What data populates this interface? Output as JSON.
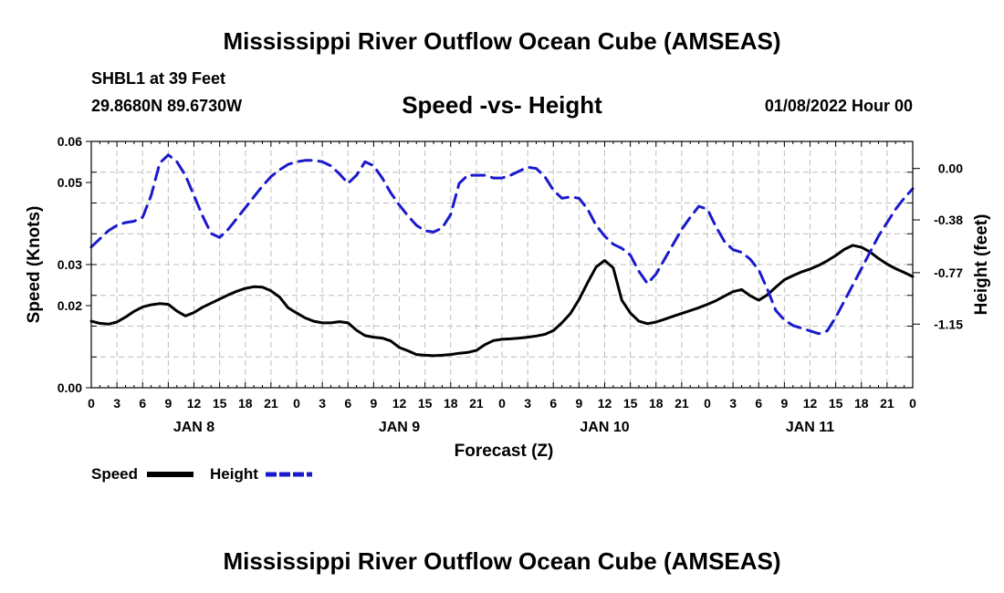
{
  "header": {
    "title": "Mississippi River Outflow Ocean Cube (AMSEAS)",
    "station": "SHBL1 at 39 Feet",
    "coords": "29.8680N  89.6730W",
    "subtitle": "Speed -vs- Height",
    "datetime": "01/08/2022 Hour 00"
  },
  "footer": {
    "title": "Mississippi River Outflow Ocean Cube (AMSEAS)"
  },
  "chart_data": {
    "type": "line",
    "title": "Speed -vs- Height",
    "xlabel": "Forecast (Z)",
    "ylabel": "Speed (Knots)",
    "y2label": "Height (feet)",
    "xlim": [
      0,
      96
    ],
    "ylim": [
      0,
      0.06
    ],
    "y2lim": [
      -1.62,
      0.2
    ],
    "x_ticks": [
      0,
      3,
      6,
      9,
      12,
      15,
      18,
      21,
      24,
      27,
      30,
      33,
      36,
      39,
      42,
      45,
      48,
      51,
      54,
      57,
      60,
      63,
      66,
      69,
      72,
      75,
      78,
      81,
      84,
      87,
      90,
      93,
      96
    ],
    "x_tick_labels": [
      "0",
      "3",
      "6",
      "9",
      "12",
      "15",
      "18",
      "21",
      "0",
      "3",
      "6",
      "9",
      "12",
      "15",
      "18",
      "21",
      "0",
      "3",
      "6",
      "9",
      "12",
      "15",
      "18",
      "21",
      "0",
      "3",
      "6",
      "9",
      "12",
      "15",
      "18",
      "21",
      "0"
    ],
    "day_labels": [
      {
        "x": 12,
        "label": "JAN 8"
      },
      {
        "x": 36,
        "label": "JAN 9"
      },
      {
        "x": 60,
        "label": "JAN 10"
      },
      {
        "x": 84,
        "label": "JAN 11"
      }
    ],
    "y_ticks": [
      0,
      0.02,
      0.03,
      0.05,
      0.06
    ],
    "y_tick_labels": [
      "0.00",
      "0.02",
      "0.03",
      "0.05",
      "0.06"
    ],
    "y_gridlines": [
      0.0075,
      0.015,
      0.0225,
      0.03,
      0.0375,
      0.045,
      0.0525
    ],
    "y2_ticks": [
      0.0,
      -0.38,
      -0.77,
      -1.15
    ],
    "y2_tick_labels": [
      "0.00",
      "-0.38",
      "-0.77",
      "-1.15"
    ],
    "legend_position": "bottom-left",
    "series": [
      {
        "name": "Speed",
        "axis": "left",
        "color": "#000000",
        "dash": "solid",
        "x": [
          0,
          1,
          2,
          3,
          4,
          5,
          6,
          7,
          8,
          9,
          10,
          11,
          12,
          13,
          14,
          15,
          16,
          17,
          18,
          19,
          20,
          21,
          22,
          23,
          24,
          25,
          26,
          27,
          28,
          29,
          30,
          31,
          32,
          33,
          34,
          35,
          36,
          37,
          38,
          39,
          40,
          41,
          42,
          43,
          44,
          45,
          46,
          47,
          48,
          49,
          50,
          51,
          52,
          53,
          54,
          55,
          56,
          57,
          58,
          59,
          60,
          61,
          62,
          63,
          64,
          65,
          66,
          67,
          68,
          69,
          70,
          71,
          72,
          73,
          74,
          75,
          76,
          77,
          78,
          79,
          80,
          81,
          82,
          83,
          84,
          85,
          86,
          87,
          88,
          89,
          90,
          91,
          92,
          93,
          94,
          95,
          96
        ],
        "values": [
          0.0162,
          0.0157,
          0.0155,
          0.016,
          0.0172,
          0.0186,
          0.0197,
          0.0202,
          0.0205,
          0.0203,
          0.0187,
          0.0175,
          0.0183,
          0.0196,
          0.0206,
          0.0216,
          0.0226,
          0.0235,
          0.0242,
          0.0246,
          0.0245,
          0.0236,
          0.0221,
          0.0195,
          0.0182,
          0.017,
          0.0162,
          0.0158,
          0.0158,
          0.0161,
          0.0158,
          0.014,
          0.0127,
          0.0123,
          0.0121,
          0.0114,
          0.0098,
          0.009,
          0.0081,
          0.0079,
          0.0078,
          0.0079,
          0.0081,
          0.0084,
          0.0086,
          0.0091,
          0.0105,
          0.0115,
          0.0118,
          0.0119,
          0.0121,
          0.0123,
          0.0126,
          0.013,
          0.0139,
          0.0158,
          0.0181,
          0.0215,
          0.0256,
          0.0294,
          0.031,
          0.0292,
          0.0213,
          0.0182,
          0.0162,
          0.0156,
          0.016,
          0.0167,
          0.0174,
          0.0181,
          0.0188,
          0.0195,
          0.0203,
          0.0212,
          0.0223,
          0.0234,
          0.0239,
          0.0224,
          0.0213,
          0.0226,
          0.0245,
          0.0263,
          0.0273,
          0.0282,
          0.0289,
          0.0298,
          0.0309,
          0.0322,
          0.0337,
          0.0347,
          0.0342,
          0.0331,
          0.0315,
          0.0301,
          0.029,
          0.0281,
          0.0271
        ]
      },
      {
        "name": "Height",
        "axis": "right",
        "color": "#1a1acd",
        "dash": "dashed",
        "x": [
          0,
          1,
          2,
          3,
          4,
          5,
          6,
          7,
          8,
          9,
          10,
          11,
          12,
          13,
          14,
          15,
          16,
          17,
          18,
          19,
          20,
          21,
          22,
          23,
          24,
          25,
          26,
          27,
          28,
          29,
          30,
          31,
          32,
          33,
          34,
          35,
          36,
          37,
          38,
          39,
          40,
          41,
          42,
          43,
          44,
          45,
          46,
          47,
          48,
          49,
          50,
          51,
          52,
          53,
          54,
          55,
          56,
          57,
          58,
          59,
          60,
          61,
          62,
          63,
          64,
          65,
          66,
          67,
          68,
          69,
          70,
          71,
          72,
          73,
          74,
          75,
          76,
          77,
          78,
          79,
          80,
          81,
          82,
          83,
          84,
          85,
          86,
          87,
          88,
          89,
          90,
          91,
          92,
          93,
          94,
          95,
          96
        ],
        "values": [
          -0.58,
          -0.52,
          -0.46,
          -0.42,
          -0.4,
          -0.39,
          -0.36,
          -0.2,
          0.04,
          0.1,
          0.05,
          -0.05,
          -0.2,
          -0.35,
          -0.48,
          -0.51,
          -0.45,
          -0.37,
          -0.29,
          -0.21,
          -0.13,
          -0.06,
          -0.01,
          0.03,
          0.05,
          0.06,
          0.06,
          0.05,
          0.02,
          -0.04,
          -0.11,
          -0.05,
          0.05,
          0.02,
          -0.07,
          -0.18,
          -0.27,
          -0.35,
          -0.42,
          -0.46,
          -0.47,
          -0.44,
          -0.34,
          -0.11,
          -0.05,
          -0.05,
          -0.05,
          -0.07,
          -0.07,
          -0.05,
          -0.02,
          0.01,
          0.0,
          -0.06,
          -0.16,
          -0.22,
          -0.21,
          -0.22,
          -0.3,
          -0.42,
          -0.5,
          -0.56,
          -0.59,
          -0.64,
          -0.76,
          -0.85,
          -0.78,
          -0.67,
          -0.56,
          -0.45,
          -0.36,
          -0.28,
          -0.3,
          -0.43,
          -0.54,
          -0.6,
          -0.62,
          -0.67,
          -0.75,
          -0.89,
          -1.05,
          -1.12,
          -1.16,
          -1.18,
          -1.2,
          -1.22,
          -1.2,
          -1.1,
          -0.98,
          -0.86,
          -0.74,
          -0.62,
          -0.5,
          -0.4,
          -0.3,
          -0.22,
          -0.15
        ]
      }
    ]
  },
  "legend": {
    "speed_label": "Speed",
    "height_label": "Height"
  }
}
